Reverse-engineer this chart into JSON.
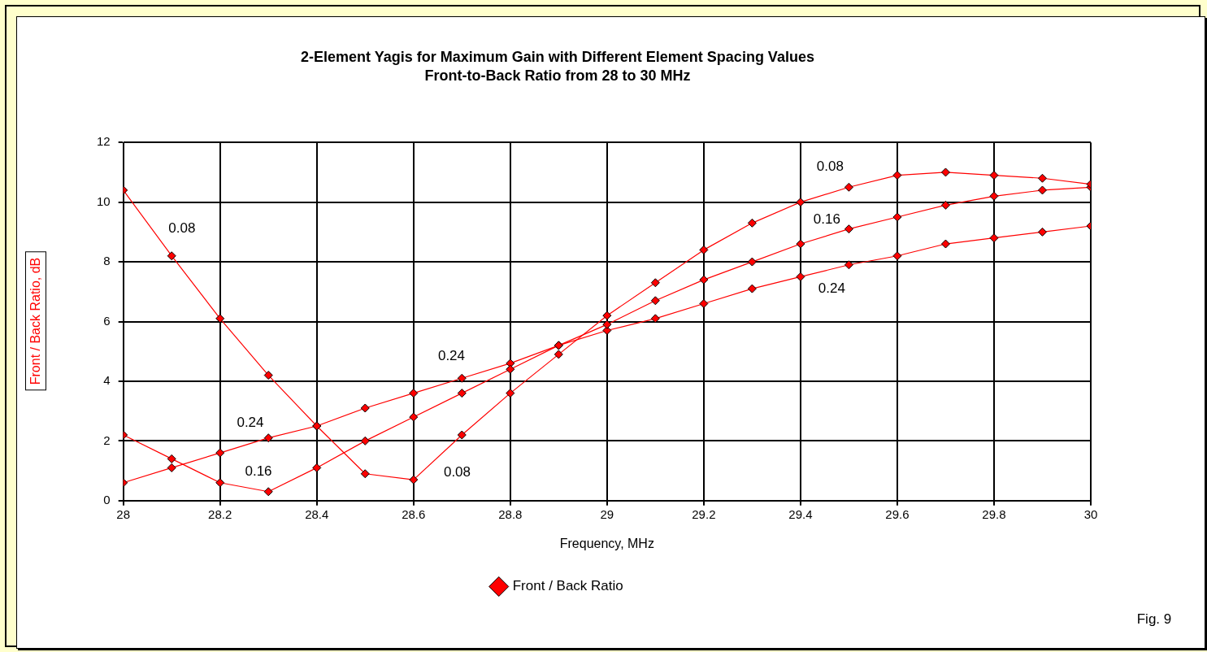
{
  "chart_data": {
    "type": "line",
    "title": "2-Element Yagis for Maximum Gain with Different Element Spacing Values",
    "subtitle": "Front-to-Back Ratio from 28 to 30 MHz",
    "xlabel": "Frequency, MHz",
    "ylabel": "Front / Back Ratio, dB",
    "x": [
      28,
      28.1,
      28.2,
      28.3,
      28.4,
      28.5,
      28.6,
      28.7,
      28.8,
      28.9,
      29,
      29.1,
      29.2,
      29.3,
      29.4,
      29.5,
      29.6,
      29.7,
      29.8,
      29.9,
      30
    ],
    "series": [
      {
        "name": "Front / Back Ratio",
        "color": "#ff0000",
        "values": [
          10.4,
          8.2,
          6.1,
          4.2,
          2.5,
          0.9,
          0.7,
          2.2,
          3.6,
          4.9,
          6.2,
          7.3,
          8.4,
          9.3,
          10.0,
          10.5,
          10.9,
          11.0,
          10.9,
          10.8,
          10.6
        ]
      },
      {
        "color": "#ff0000",
        "values": [
          2.2,
          1.4,
          0.6,
          0.3,
          1.1,
          2.0,
          2.8,
          3.6,
          4.4,
          5.2,
          5.9,
          6.7,
          7.4,
          8.0,
          8.6,
          9.1,
          9.5,
          9.9,
          10.2,
          10.4,
          10.5
        ]
      },
      {
        "color": "#ff0000",
        "values": [
          0.6,
          1.1,
          1.6,
          2.1,
          2.5,
          3.1,
          3.6,
          4.1,
          4.6,
          5.2,
          5.7,
          6.1,
          6.6,
          7.1,
          7.5,
          7.9,
          8.2,
          8.6,
          8.8,
          9.0,
          9.2
        ]
      }
    ],
    "xlim": [
      28,
      30
    ],
    "xticks": [
      28,
      28.2,
      28.4,
      28.6,
      28.8,
      29,
      29.2,
      29.4,
      29.6,
      29.8,
      30
    ],
    "ylim": [
      0,
      12
    ],
    "yticks": [
      0,
      2,
      4,
      6,
      8,
      10,
      12
    ],
    "grid": true,
    "legend": "bottom",
    "marker": "diamond",
    "line_style": "solid",
    "annotations": [
      "0.08",
      "0.24",
      "0.24",
      "0.16",
      "0.08",
      "0.08",
      "0.16",
      "0.24",
      "Fig. 9"
    ]
  }
}
